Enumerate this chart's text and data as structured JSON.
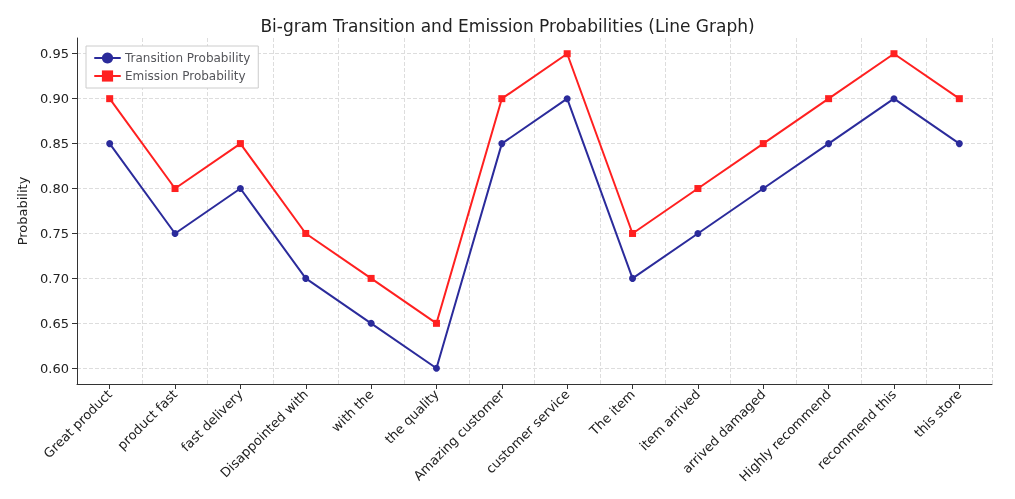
{
  "chart_data": {
    "type": "line",
    "title": "Bi-gram Transition and Emission Probabilities (Line Graph)",
    "ylabel": "Probability",
    "categories": [
      "Great product",
      "product fast",
      "fast delivery",
      "Disappointed with",
      "with the",
      "the quality",
      "Amazing customer",
      "customer service",
      "The item",
      "item arrived",
      "arrived damaged",
      "Highly recommend",
      "recommend this",
      "this store"
    ],
    "series": [
      {
        "name": "Transition Probability",
        "color": "#2b2b9b",
        "marker": "circle",
        "values": [
          0.85,
          0.75,
          0.8,
          0.7,
          0.65,
          0.6,
          0.85,
          0.9,
          0.7,
          0.75,
          0.8,
          0.85,
          0.9,
          0.85
        ]
      },
      {
        "name": "Emission Probability",
        "color": "#ff2020",
        "marker": "square",
        "values": [
          0.9,
          0.8,
          0.85,
          0.75,
          0.7,
          0.65,
          0.9,
          0.95,
          0.75,
          0.8,
          0.85,
          0.9,
          0.95,
          0.9
        ]
      }
    ],
    "ylim": [
      0.5825,
      0.9675
    ],
    "yticks": [
      {
        "value": 0.6,
        "label": "0.60"
      },
      {
        "value": 0.65,
        "label": "0.65"
      },
      {
        "value": 0.7,
        "label": "0.70"
      },
      {
        "value": 0.75,
        "label": "0.75"
      },
      {
        "value": 0.8,
        "label": "0.80"
      },
      {
        "value": 0.85,
        "label": "0.85"
      },
      {
        "value": 0.9,
        "label": "0.90"
      },
      {
        "value": 0.95,
        "label": "0.95"
      }
    ],
    "grid": true,
    "legend": "top left",
    "line_style": "solid"
  }
}
